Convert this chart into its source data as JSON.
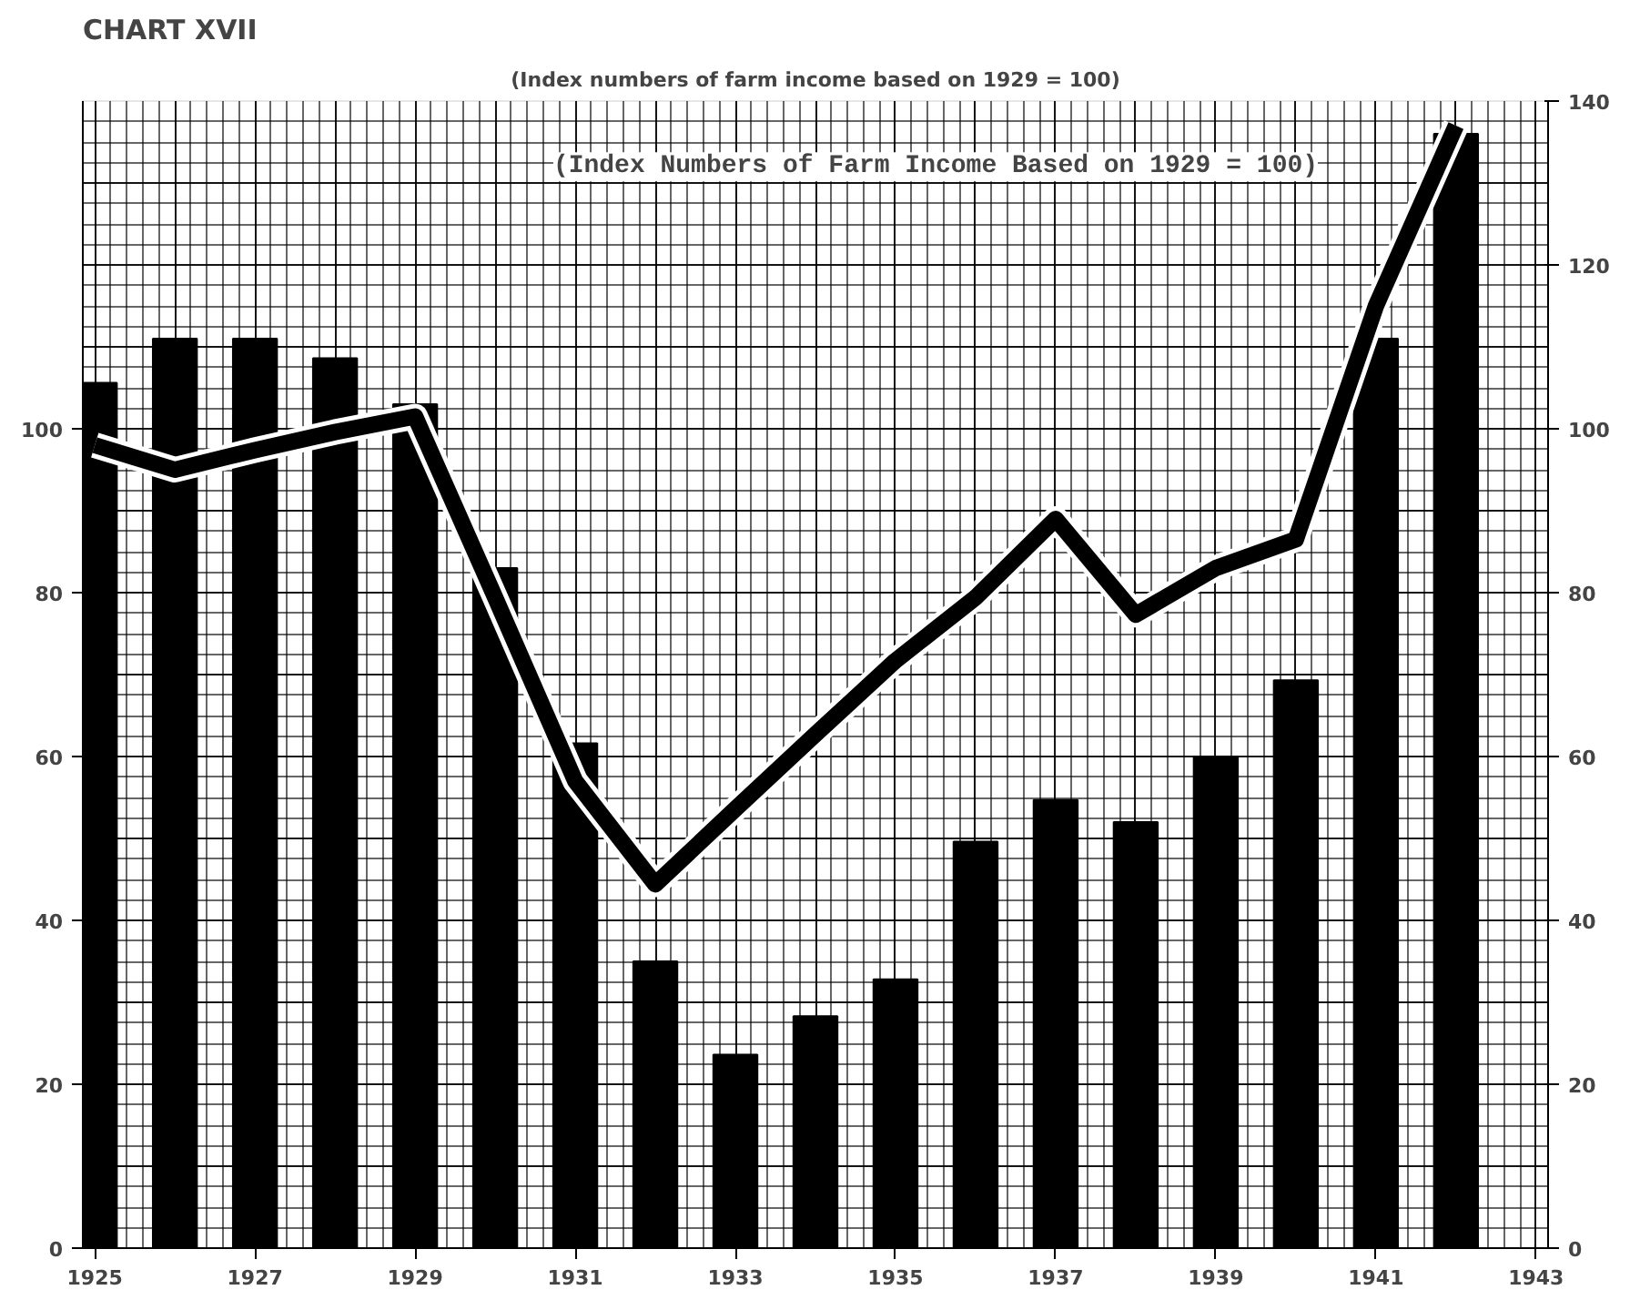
{
  "chart_data": {
    "type": "bar",
    "title": "CHART XVII",
    "subtitle": "(Index numbers of farm income based on 1929 = 100)",
    "annotations": [
      "(Index Numbers of Farm Income Based on 1929 = 100)"
    ],
    "x": [
      1925,
      1926,
      1927,
      1928,
      1929,
      1930,
      1931,
      1932,
      1933,
      1934,
      1935,
      1936,
      1937,
      1938,
      1939,
      1940,
      1941,
      1942
    ],
    "series": [
      {
        "color": "#000000",
        "values": [
          105.6,
          111,
          111,
          108.6,
          103,
          83,
          61.6,
          35,
          23.6,
          28.3,
          32.8,
          49.6,
          54.7,
          52,
          60,
          69.3,
          111,
          136
        ]
      },
      {
        "type": "line",
        "color": "#000000",
        "values": [
          98,
          95,
          97.4,
          99.6,
          101.5,
          79.4,
          57,
          44.4,
          53.6,
          62.7,
          71.7,
          79.4,
          89,
          77.3,
          83,
          86.5,
          115,
          137
        ]
      }
    ],
    "xlim": [
      1924.85,
      1943.15
    ],
    "xticks": [
      1925,
      1927,
      1929,
      1931,
      1933,
      1935,
      1937,
      1939,
      1941,
      1943
    ],
    "ylim": [
      0,
      140
    ],
    "yticks": [
      0,
      20,
      40,
      60,
      80,
      100
    ],
    "y2lim": [
      0,
      140
    ],
    "y2ticks": [
      0,
      20,
      40,
      60,
      80,
      100,
      120,
      140
    ],
    "grid": true,
    "marker": "none",
    "line_style": "solid"
  }
}
